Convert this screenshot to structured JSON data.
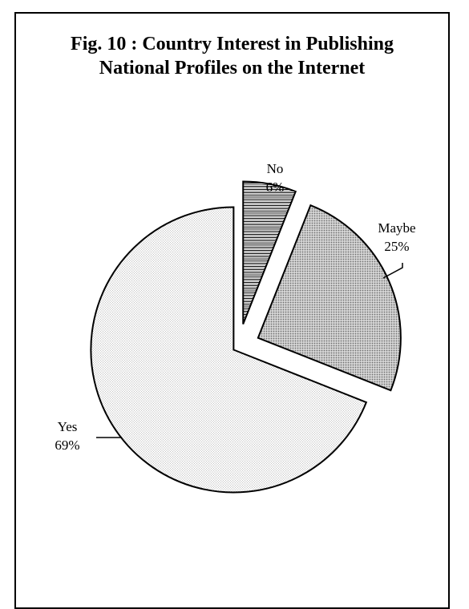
{
  "chart_data": {
    "type": "pie",
    "title": "Fig. 10 : Country Interest in Publishing",
    "title_line2": "National Profiles on the Internet",
    "slices": [
      {
        "label": "No",
        "percent_label": "6%",
        "value": 6,
        "pattern": "horizontal-stripes"
      },
      {
        "label": "Maybe",
        "percent_label": "25%",
        "value": 25,
        "pattern": "dense-dots"
      },
      {
        "label": "Yes",
        "percent_label": "69%",
        "value": 69,
        "pattern": "light-dots"
      }
    ],
    "legend": "none",
    "colors": {
      "stroke": "#000000",
      "background": "#ffffff"
    }
  }
}
